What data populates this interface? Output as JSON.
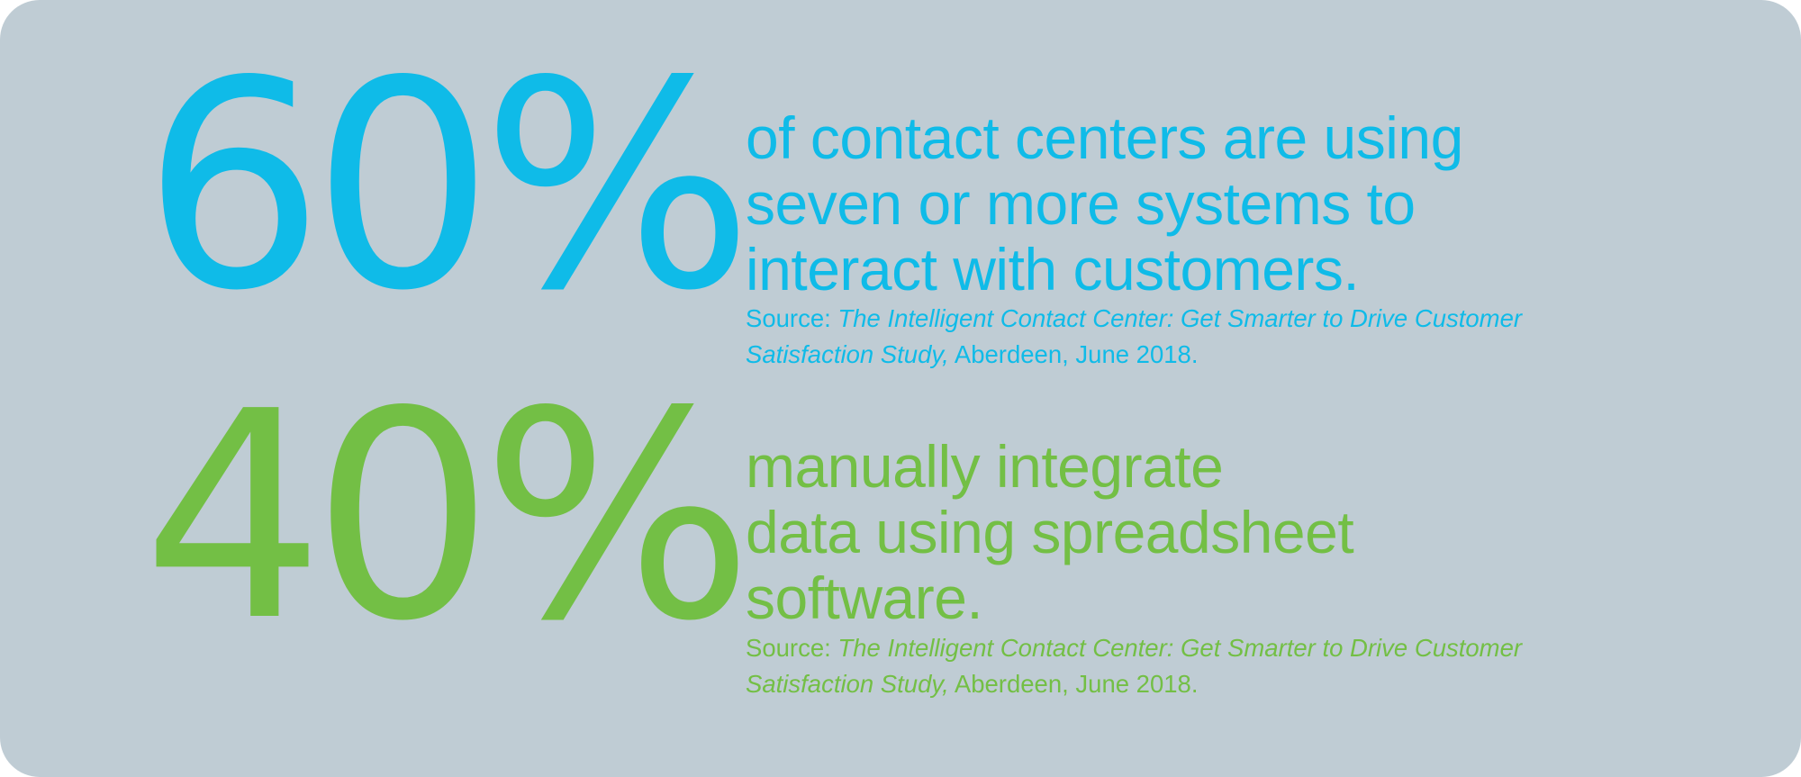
{
  "colors": {
    "background": "#bfccd4",
    "blue": "#0fbbe8",
    "green": "#73bf45"
  },
  "stats": [
    {
      "value": "60%",
      "statement_lines": [
        "of contact centers are using",
        "seven or more systems to",
        "interact with customers."
      ],
      "source_prefix": "Source: ",
      "source_title": "The Intelligent Contact Center: Get Smarter to Drive Customer Satisfaction Study,",
      "source_suffix": " Aberdeen, June 2018."
    },
    {
      "value": "40%",
      "statement_lines": [
        "manually integrate",
        "data using spreadsheet",
        "software."
      ],
      "source_prefix": "Source: ",
      "source_title": "The Intelligent Contact Center: Get Smarter to Drive Customer Satisfaction Study,",
      "source_suffix": " Aberdeen, June 2018."
    }
  ]
}
